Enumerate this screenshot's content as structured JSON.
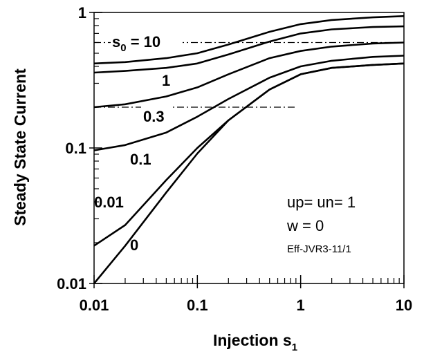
{
  "chart_data": {
    "type": "line",
    "title": "",
    "x_scale": "log",
    "y_scale": "log",
    "xlim": [
      0.01,
      10
    ],
    "ylim": [
      0.01,
      1
    ],
    "grid": false,
    "x_ticks": [
      "0.01",
      "0.1",
      "1",
      "10"
    ],
    "y_ticks": [
      "0.01",
      "0.1",
      "1"
    ],
    "xlabel": {
      "main": "Injection s",
      "sub": "1"
    },
    "ylabel": "Steady State Current",
    "series": [
      {
        "name": "s0 = 10",
        "x": [
          0.01,
          0.02,
          0.05,
          0.1,
          0.2,
          0.5,
          1,
          2,
          5,
          10
        ],
        "y": [
          0.42,
          0.43,
          0.46,
          0.5,
          0.58,
          0.72,
          0.82,
          0.88,
          0.92,
          0.94
        ]
      },
      {
        "name": "1",
        "x": [
          0.01,
          0.02,
          0.05,
          0.1,
          0.2,
          0.5,
          1,
          2,
          5,
          10
        ],
        "y": [
          0.36,
          0.37,
          0.39,
          0.42,
          0.49,
          0.61,
          0.7,
          0.75,
          0.78,
          0.79
        ]
      },
      {
        "name": "0.3",
        "x": [
          0.01,
          0.02,
          0.05,
          0.1,
          0.2,
          0.5,
          1,
          2,
          5,
          10
        ],
        "y": [
          0.2,
          0.21,
          0.24,
          0.28,
          0.35,
          0.46,
          0.52,
          0.56,
          0.59,
          0.6
        ]
      },
      {
        "name": "0.1",
        "x": [
          0.01,
          0.02,
          0.05,
          0.1,
          0.2,
          0.5,
          1,
          2,
          5,
          10
        ],
        "y": [
          0.096,
          0.105,
          0.13,
          0.17,
          0.23,
          0.33,
          0.4,
          0.44,
          0.47,
          0.48
        ]
      },
      {
        "name": "0.01",
        "x": [
          0.01,
          0.02,
          0.05,
          0.1,
          0.2,
          0.5,
          1,
          2,
          5,
          10
        ],
        "y": [
          0.019,
          0.027,
          0.058,
          0.1,
          0.16,
          0.27,
          0.35,
          0.39,
          0.41,
          0.42
        ]
      },
      {
        "name": "0",
        "x": [
          0.01,
          0.02,
          0.05,
          0.1,
          0.2,
          0.5,
          1,
          2,
          5,
          10
        ],
        "y": [
          0.01,
          0.019,
          0.047,
          0.091,
          0.16,
          0.27,
          0.35,
          0.39,
          0.41,
          0.42
        ]
      }
    ],
    "reference_lines": [
      {
        "y": 0.6,
        "x_range": [
          0.01,
          10
        ],
        "style": "dash-dot"
      },
      {
        "y": 0.2,
        "x_range": [
          0.01,
          0.9
        ],
        "style": "dash-dot"
      }
    ],
    "curve_labels": [
      {
        "main": "s",
        "sub": "0",
        "rest": " = 10"
      },
      {
        "text": "1"
      },
      {
        "text": "0.3"
      },
      {
        "text": "0.1"
      },
      {
        "text": "0.01"
      },
      {
        "text": "0"
      }
    ],
    "annotations": [
      "up= un= 1",
      "w = 0",
      "Eff-JVR3-11/1"
    ]
  }
}
